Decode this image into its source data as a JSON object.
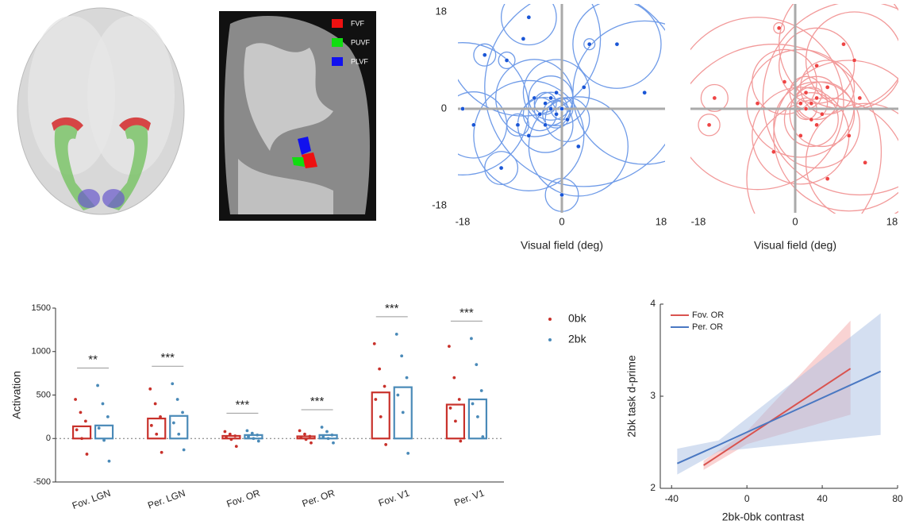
{
  "mri_legend": [
    {
      "label": "FVF",
      "color": "#ee1111"
    },
    {
      "label": "PUVF",
      "color": "#11dd11"
    },
    {
      "label": "PLVF",
      "color": "#1111ee"
    }
  ],
  "chart_data": [
    {
      "type": "scatter",
      "color": "#1a56d6",
      "ring_color": "#6f9be8",
      "x": [
        -2,
        -3,
        -1,
        -2,
        -4,
        0,
        -3,
        -1,
        -14,
        -10,
        -6,
        5,
        10,
        15,
        -16,
        -11,
        -8,
        0,
        3,
        -6,
        -18,
        -7,
        4,
        -5,
        1
      ],
      "y": [
        0,
        1,
        -1,
        2,
        -1,
        0,
        -3,
        3,
        10,
        9,
        17,
        12,
        12,
        3,
        -3,
        -11,
        -3,
        -16,
        -7,
        -5,
        0,
        13,
        4,
        2,
        -2
      ],
      "size": [
        3,
        2,
        2.5,
        4,
        3,
        2,
        5,
        6,
        2,
        1.5,
        5,
        1,
        8,
        13,
        6,
        3,
        2,
        3,
        9,
        10,
        12,
        14,
        18,
        7,
        4
      ],
      "xlim": [
        -18,
        18
      ],
      "ylim": [
        -18,
        18
      ],
      "xticks": [
        -18,
        0,
        18
      ],
      "yticks": [
        -18,
        0,
        18
      ],
      "xlabel": "Visual field (deg)"
    },
    {
      "type": "scatter",
      "color": "#ee4444",
      "ring_color": "#f29a9a",
      "x": [
        3,
        2,
        4,
        3,
        5,
        2,
        4,
        1,
        -15,
        -16,
        -3,
        -2,
        4,
        11,
        13,
        10,
        6,
        9,
        12,
        -7,
        -4,
        6,
        1
      ],
      "y": [
        1,
        0,
        2,
        -2,
        -1,
        3,
        -3,
        1,
        2,
        -3,
        15,
        5,
        8,
        9,
        -10,
        -5,
        -13,
        12,
        2,
        1,
        -8,
        4,
        -5
      ],
      "size": [
        3,
        2,
        4,
        5,
        6,
        3,
        8,
        10,
        2.5,
        2,
        1,
        6,
        7,
        9,
        11,
        14,
        15,
        12,
        18,
        16,
        20,
        5,
        9
      ],
      "xlim": [
        -18,
        18
      ],
      "ylim": [
        -18,
        18
      ],
      "xticks": [
        -18,
        0,
        18
      ],
      "xlabel": "Visual field (deg)"
    },
    {
      "type": "bar",
      "ylabel": "Activation",
      "ylim": [
        -500,
        1500
      ],
      "yticks": [
        -500,
        0,
        500,
        1000,
        1500
      ],
      "categories": [
        "Fov. LGN",
        "Per. LGN",
        "Fov. OR",
        "Per. OR",
        "Fov. V1",
        "Per. V1"
      ],
      "annotations": [
        "**",
        "***",
        "***",
        "***",
        "***",
        "***"
      ],
      "legend": "right",
      "series": [
        {
          "name": "0bk",
          "color": "#c8312b",
          "values": [
            140,
            230,
            30,
            25,
            530,
            390
          ],
          "points": [
            [
              450,
              300,
              200,
              100,
              0,
              -180
            ],
            [
              570,
              400,
              250,
              150,
              50,
              -160
            ],
            [
              80,
              50,
              30,
              10,
              -10,
              -90
            ],
            [
              90,
              50,
              25,
              10,
              -10,
              -50
            ],
            [
              1090,
              800,
              600,
              450,
              250,
              -70
            ],
            [
              1060,
              700,
              450,
              350,
              200,
              -30
            ]
          ]
        },
        {
          "name": "2bk",
          "color": "#4a8ab8",
          "values": [
            150,
            260,
            40,
            40,
            590,
            450
          ],
          "points": [
            [
              610,
              400,
              250,
              120,
              -20,
              -260
            ],
            [
              630,
              450,
              300,
              180,
              50,
              -130
            ],
            [
              90,
              60,
              40,
              20,
              0,
              -30
            ],
            [
              130,
              80,
              40,
              20,
              0,
              -50
            ],
            [
              1200,
              950,
              700,
              500,
              300,
              -170
            ],
            [
              1150,
              850,
              550,
              400,
              250,
              20
            ]
          ]
        }
      ]
    },
    {
      "type": "line",
      "xlabel": "2bk-0bk contrast",
      "ylabel": "2bk task d-prime",
      "xlim": [
        -46,
        80
      ],
      "ylim": [
        2,
        4
      ],
      "xticks": [
        -40,
        0,
        40,
        80
      ],
      "yticks": [
        2,
        3,
        4
      ],
      "legend": "upper left",
      "series": [
        {
          "name": "Fov. OR",
          "color": "#d9534f",
          "band_color": "#f4a8a8",
          "x": [
            -23,
            0,
            55
          ],
          "values": [
            2.25,
            2.56,
            3.3
          ],
          "lower": [
            2.2,
            2.48,
            2.8
          ],
          "upper": [
            2.3,
            2.62,
            3.82
          ]
        },
        {
          "name": "Per. OR",
          "color": "#4a78c2",
          "band_color": "#a9bfe3",
          "x": [
            -37,
            -15,
            71
          ],
          "values": [
            2.27,
            2.47,
            3.27
          ],
          "lower": [
            2.15,
            2.4,
            2.58
          ],
          "upper": [
            2.43,
            2.52,
            3.9
          ]
        }
      ]
    }
  ]
}
